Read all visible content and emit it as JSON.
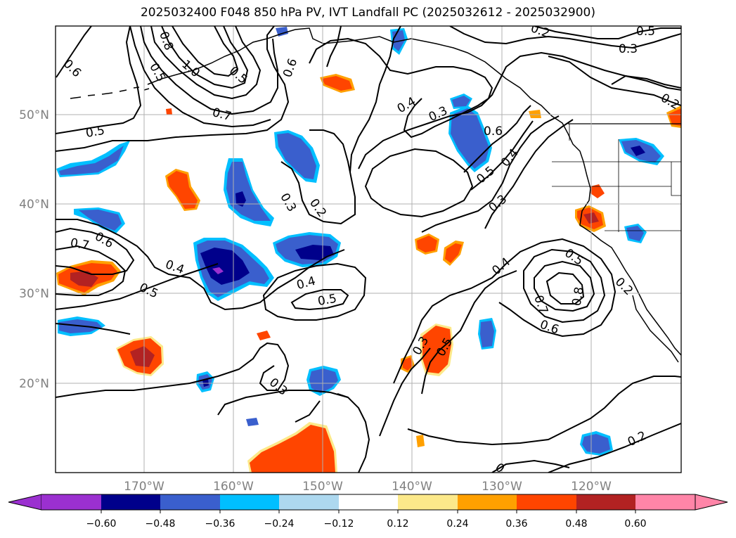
{
  "title": "2025032400 F048 850 hPa PV, IVT Landfall PC (2025032612 - 2025032900)",
  "map": {
    "lat_labels": [
      "50°N",
      "40°N",
      "30°N",
      "20°N"
    ],
    "lon_labels": [
      "170°W",
      "160°W",
      "150°W",
      "140°W",
      "130°W",
      "120°W"
    ],
    "axis_label_color": "#808080",
    "grid_color": "#b0b0b0"
  },
  "contour_labels": [
    "0.6",
    "0.8",
    "0.5",
    "1.0",
    "0.6",
    "0.7",
    "0.5",
    "0.4",
    "0.3",
    "0.6",
    "0.5",
    "0.4",
    "0.3",
    "0.5",
    "0.3",
    "0.2",
    "0.2",
    "0.3",
    "0.2",
    "0.7",
    "0.6",
    "0.4",
    "0.5",
    "0.4",
    "0.5",
    "0.4",
    "0.5",
    "0.3",
    "0.7",
    "0.8",
    "0.6",
    "0.5",
    "0.2",
    "0.3",
    "0.5",
    "0.2",
    "0"
  ],
  "colorbar": {
    "ticks": [
      "−0.60",
      "−0.48",
      "−0.36",
      "−0.24",
      "−0.12",
      "0.12",
      "0.24",
      "0.36",
      "0.48",
      "0.60"
    ],
    "colors": [
      "#9b30d0",
      "#00008b",
      "#3a5fcd",
      "#00bfff",
      "#add8ef",
      "#ffffff",
      "#fce98a",
      "#ffa000",
      "#ff4500",
      "#b22222",
      "#ff85a8"
    ]
  }
}
